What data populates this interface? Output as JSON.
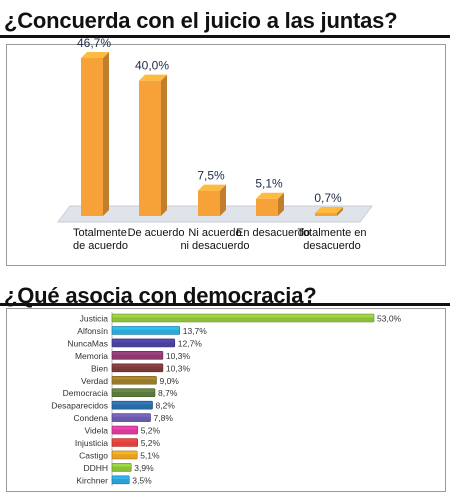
{
  "chart_data": [
    {
      "type": "bar",
      "title": "¿Concuerda con el juicio a las juntas?",
      "categories": [
        [
          "Totalmente",
          "de acuerdo"
        ],
        [
          "De acuerdo"
        ],
        [
          "Ni acuerdo",
          "ni desacuerdo"
        ],
        [
          "En desacuerdo"
        ],
        [
          "Totalmente en",
          "desacuerdo"
        ]
      ],
      "values": [
        46.7,
        40.0,
        7.5,
        5.1,
        0.7
      ],
      "value_labels": [
        "46,7%",
        "40,0%",
        "7,5%",
        "5,1%",
        "0,7%"
      ],
      "orientation": "vertical",
      "bar_color": "#f7a238",
      "grid": false,
      "legend": "none"
    },
    {
      "type": "bar",
      "title": "¿Qué asocia con democracia?",
      "orientation": "horizontal",
      "categories": [
        "Justicia",
        "Alfonsín",
        "NuncaMas",
        "Memoria",
        "Bien",
        "Verdad",
        "Democracia",
        "Desaparecidos",
        "Condena",
        "Videla",
        "Injusticia",
        "Castigo",
        "DDHH",
        "Kirchner"
      ],
      "values": [
        53.0,
        13.7,
        12.7,
        10.3,
        10.3,
        9.0,
        8.7,
        8.2,
        7.8,
        5.2,
        5.2,
        5.1,
        3.9,
        3.5
      ],
      "value_labels": [
        "53,0%",
        "13,7%",
        "12,7%",
        "10,3%",
        "10,3%",
        "9,0%",
        "8,7%",
        "8,2%",
        "7,8%",
        "5,2%",
        "5,2%",
        "5,1%",
        "3,9%",
        "3,5%"
      ],
      "colors": [
        "#8fbf3a",
        "#2aa8d6",
        "#4a3f9c",
        "#8b3a6e",
        "#7b3a3a",
        "#9a7a2a",
        "#5a7a3a",
        "#2a6aa8",
        "#6a5aa8",
        "#d93a9a",
        "#e0403a",
        "#e8a020",
        "#8abf3a",
        "#2aa0d6"
      ],
      "grid": false,
      "legend": "none"
    }
  ]
}
